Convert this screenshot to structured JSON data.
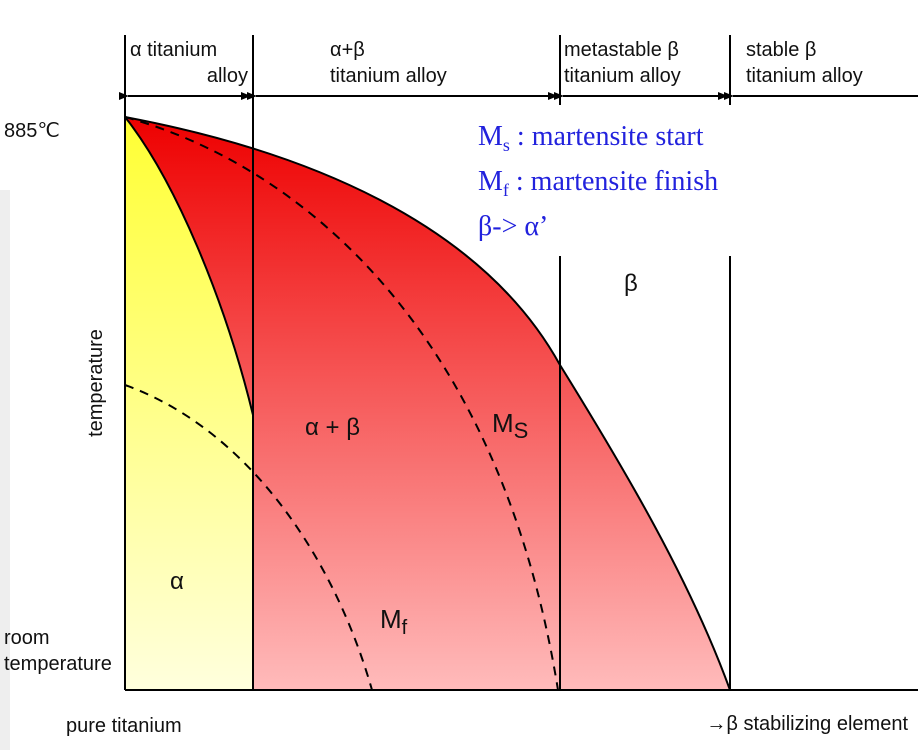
{
  "header": {
    "alpha_alloy": [
      "α titanium",
      "alloy"
    ],
    "alpha_beta_alloy": [
      "α+β",
      "titanium alloy"
    ],
    "metastable_beta_alloy": [
      "metastable β",
      "titanium alloy"
    ],
    "stable_beta_alloy": [
      "stable β",
      "titanium alloy"
    ]
  },
  "labels": {
    "temp_885": "885℃",
    "y_axis": "temperature",
    "room_temp": [
      "room",
      "temperature"
    ],
    "x_left": "pure titanium",
    "x_right": "→β stabilizing element",
    "region_alpha": "α",
    "region_alpha_beta": "α + β",
    "region_beta": "β",
    "ms_sub": "S",
    "mf_sub": "f"
  },
  "legend": {
    "ms_sub": "s",
    "ms_text": " : martensite start",
    "mf_sub": "f",
    "mf_text": " : martensite finish",
    "transform": "β-> α’"
  },
  "colors": {
    "yellow_top": "#ffff33",
    "yellow_bottom": "#ffffdd",
    "red_top": "#ee0000",
    "red_bottom": "#ffbbbb",
    "legend_text": "#2222dd"
  }
}
